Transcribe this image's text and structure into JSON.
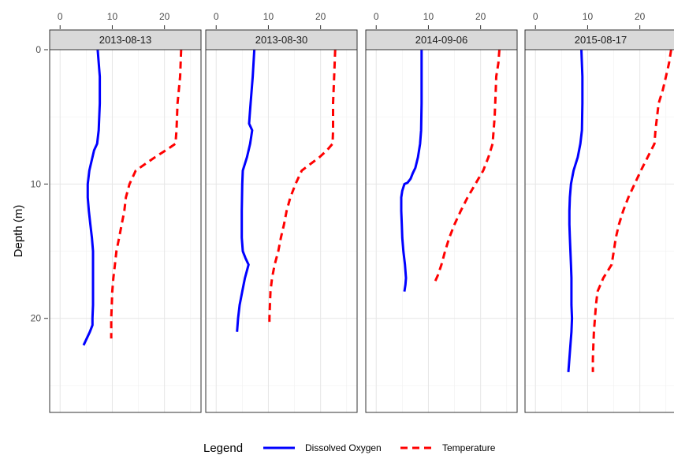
{
  "chart_data": {
    "type": "line",
    "ylabel": "Depth (m)",
    "y_reversed": true,
    "ylim": [
      0,
      27
    ],
    "yticks": [
      0,
      10,
      20
    ],
    "xlim": [
      -2,
      27
    ],
    "xticks": [
      0,
      10,
      20
    ],
    "grid": true,
    "legend": {
      "title": "Legend",
      "position": "bottom",
      "entries": [
        {
          "name": "Dissolved Oxygen",
          "color": "#0000ff",
          "dash": "solid"
        },
        {
          "name": "Temperature",
          "color": "#ff0000",
          "dash": "dashed"
        }
      ]
    },
    "panels": [
      {
        "title": "2013-08-13",
        "series": [
          {
            "name": "Dissolved Oxygen",
            "points": [
              [
                7.2,
                0
              ],
              [
                7.6,
                2
              ],
              [
                7.6,
                4
              ],
              [
                7.4,
                6
              ],
              [
                7.1,
                7
              ],
              [
                6.5,
                7.5
              ],
              [
                6.2,
                8
              ],
              [
                5.6,
                9
              ],
              [
                5.3,
                10
              ],
              [
                5.3,
                11
              ],
              [
                5.5,
                12
              ],
              [
                5.8,
                13
              ],
              [
                6.1,
                14
              ],
              [
                6.3,
                15
              ],
              [
                6.3,
                16
              ],
              [
                6.3,
                17
              ],
              [
                6.3,
                18
              ],
              [
                6.3,
                19
              ],
              [
                6.2,
                20
              ],
              [
                6.2,
                20.5
              ],
              [
                5.7,
                21
              ],
              [
                4.5,
                22
              ]
            ]
          },
          {
            "name": "Temperature",
            "points": [
              [
                23.2,
                0
              ],
              [
                23.0,
                2
              ],
              [
                22.5,
                4
              ],
              [
                22.3,
                6
              ],
              [
                22.1,
                7
              ],
              [
                20.2,
                7.5
              ],
              [
                18.2,
                8
              ],
              [
                14.5,
                9
              ],
              [
                13.3,
                10
              ],
              [
                12.6,
                11
              ],
              [
                12.3,
                12
              ],
              [
                11.8,
                13
              ],
              [
                11.3,
                14
              ],
              [
                10.8,
                15
              ],
              [
                10.5,
                16
              ],
              [
                10.2,
                17
              ],
              [
                10.0,
                18
              ],
              [
                9.9,
                19
              ],
              [
                9.8,
                20
              ],
              [
                9.8,
                21.5
              ]
            ]
          }
        ]
      },
      {
        "title": "2013-08-30",
        "series": [
          {
            "name": "Dissolved Oxygen",
            "points": [
              [
                7.3,
                0
              ],
              [
                7.0,
                2
              ],
              [
                6.6,
                4
              ],
              [
                6.4,
                5
              ],
              [
                6.3,
                5.5
              ],
              [
                6.9,
                6
              ],
              [
                6.5,
                7
              ],
              [
                5.9,
                8
              ],
              [
                5.1,
                9
              ],
              [
                5.0,
                10
              ],
              [
                4.9,
                12
              ],
              [
                4.9,
                14
              ],
              [
                5.1,
                15
              ],
              [
                5.6,
                15.5
              ],
              [
                6.2,
                16
              ],
              [
                5.5,
                17
              ],
              [
                5.0,
                18
              ],
              [
                4.5,
                19
              ],
              [
                4.2,
                20
              ],
              [
                4.0,
                21
              ]
            ]
          },
          {
            "name": "Temperature",
            "points": [
              [
                22.8,
                0
              ],
              [
                22.6,
                2
              ],
              [
                22.4,
                4
              ],
              [
                22.4,
                6
              ],
              [
                22.3,
                7
              ],
              [
                21.2,
                7.5
              ],
              [
                19.8,
                8
              ],
              [
                16.4,
                9
              ],
              [
                15.2,
                10
              ],
              [
                14.2,
                11
              ],
              [
                13.5,
                12
              ],
              [
                13.0,
                13
              ],
              [
                12.4,
                14
              ],
              [
                11.9,
                15
              ],
              [
                11.2,
                16
              ],
              [
                10.7,
                17
              ],
              [
                10.4,
                18
              ],
              [
                10.3,
                19
              ],
              [
                10.2,
                20
              ],
              [
                10.2,
                20.5
              ]
            ]
          }
        ]
      },
      {
        "title": "2014-09-06",
        "series": [
          {
            "name": "Dissolved Oxygen",
            "points": [
              [
                8.7,
                0
              ],
              [
                8.7,
                2
              ],
              [
                8.7,
                4
              ],
              [
                8.6,
                6
              ],
              [
                8.4,
                7
              ],
              [
                8.0,
                8
              ],
              [
                7.5,
                8.8
              ],
              [
                7.0,
                9.2
              ],
              [
                6.6,
                9.6
              ],
              [
                6.0,
                9.9
              ],
              [
                5.4,
                10
              ],
              [
                5.0,
                10.5
              ],
              [
                4.8,
                11
              ],
              [
                4.8,
                12
              ],
              [
                4.9,
                13
              ],
              [
                5.0,
                14
              ],
              [
                5.2,
                15
              ],
              [
                5.5,
                16
              ],
              [
                5.7,
                17
              ],
              [
                5.6,
                17.5
              ],
              [
                5.4,
                18
              ]
            ]
          },
          {
            "name": "Temperature",
            "points": [
              [
                23.6,
                0
              ],
              [
                23.4,
                1
              ],
              [
                23.0,
                2
              ],
              [
                22.9,
                3
              ],
              [
                22.7,
                5
              ],
              [
                22.5,
                6
              ],
              [
                22.3,
                7
              ],
              [
                21.5,
                8
              ],
              [
                20.5,
                9
              ],
              [
                19.0,
                10
              ],
              [
                17.5,
                11
              ],
              [
                16.2,
                12
              ],
              [
                15.0,
                13
              ],
              [
                14.0,
                14
              ],
              [
                13.2,
                15
              ],
              [
                12.5,
                16
              ],
              [
                11.8,
                16.8
              ],
              [
                11.0,
                17.5
              ]
            ]
          }
        ]
      },
      {
        "title": "2015-08-17",
        "series": [
          {
            "name": "Dissolved Oxygen",
            "points": [
              [
                8.8,
                0
              ],
              [
                9.0,
                2
              ],
              [
                9.0,
                4
              ],
              [
                8.9,
                6
              ],
              [
                8.6,
                7
              ],
              [
                8.1,
                8
              ],
              [
                7.3,
                9
              ],
              [
                6.8,
                10
              ],
              [
                6.6,
                11
              ],
              [
                6.5,
                12
              ],
              [
                6.5,
                13
              ],
              [
                6.6,
                14
              ],
              [
                6.7,
                15
              ],
              [
                6.8,
                16
              ],
              [
                6.9,
                17
              ],
              [
                6.9,
                18
              ],
              [
                6.9,
                19
              ],
              [
                7.0,
                20
              ],
              [
                6.9,
                21
              ],
              [
                6.7,
                22
              ],
              [
                6.5,
                23
              ],
              [
                6.3,
                24
              ]
            ]
          },
          {
            "name": "Temperature",
            "points": [
              [
                26.0,
                0
              ],
              [
                25.6,
                1
              ],
              [
                25.0,
                2
              ],
              [
                24.4,
                3
              ],
              [
                23.6,
                4
              ],
              [
                23.3,
                5
              ],
              [
                23.0,
                6
              ],
              [
                22.8,
                7
              ],
              [
                21.5,
                8
              ],
              [
                20.2,
                9
              ],
              [
                19.0,
                10
              ],
              [
                17.8,
                11
              ],
              [
                16.8,
                12
              ],
              [
                16.0,
                13
              ],
              [
                15.4,
                14
              ],
              [
                15.0,
                15
              ],
              [
                14.6,
                16
              ],
              [
                13.0,
                17
              ],
              [
                11.9,
                18
              ],
              [
                11.6,
                19
              ],
              [
                11.4,
                20
              ],
              [
                11.2,
                21
              ],
              [
                11.1,
                22
              ],
              [
                11.0,
                23
              ],
              [
                11.0,
                24
              ]
            ]
          }
        ]
      }
    ]
  }
}
